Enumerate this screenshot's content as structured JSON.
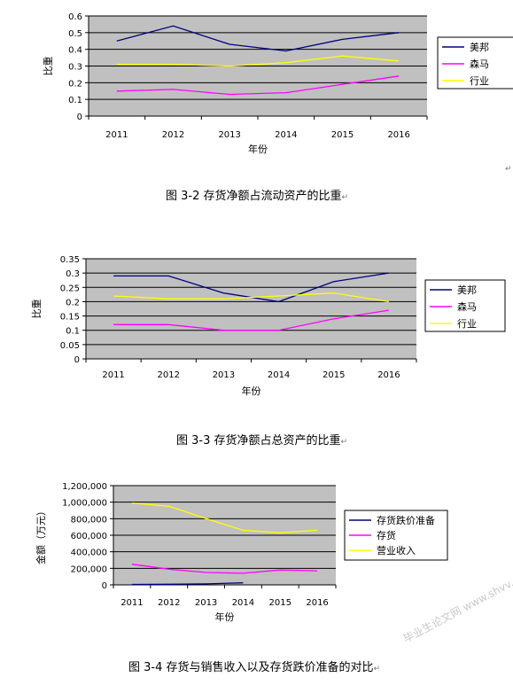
{
  "chart_data": [
    {
      "type": "line",
      "categories": [
        "2011",
        "2012",
        "2013",
        "2014",
        "2015",
        "2016"
      ],
      "ylabel": "比重",
      "xlabel": "年份",
      "ylim": [
        0,
        0.6
      ],
      "yticks": [
        0,
        0.1,
        0.2,
        0.3,
        0.4,
        0.5,
        0.6
      ],
      "ytick_labels": [
        "0",
        "0.1",
        "0.2",
        "0.3",
        "0.4",
        "0.5",
        "0.6"
      ],
      "grid": true,
      "legend": "right",
      "series": [
        {
          "name": "美邦",
          "color": "#000080",
          "values": [
            0.45,
            0.54,
            0.43,
            0.39,
            0.46,
            0.5
          ]
        },
        {
          "name": "森马",
          "color": "#ff00ff",
          "values": [
            0.15,
            0.16,
            0.13,
            0.14,
            0.19,
            0.24
          ]
        },
        {
          "name": "行业",
          "color": "#ffff00",
          "values": [
            0.31,
            0.31,
            0.3,
            0.32,
            0.36,
            0.33
          ]
        }
      ]
    },
    {
      "type": "line",
      "categories": [
        "2011",
        "2012",
        "2013",
        "2014",
        "2015",
        "2016"
      ],
      "ylabel": "比重",
      "xlabel": "年份",
      "ylim": [
        0,
        0.35
      ],
      "yticks": [
        0,
        0.05,
        0.1,
        0.15,
        0.2,
        0.25,
        0.3,
        0.35
      ],
      "ytick_labels": [
        "0",
        "0.05",
        "0.1",
        "0.15",
        "0.2",
        "0.25",
        "0.3",
        "0.35"
      ],
      "grid": true,
      "legend": "right",
      "series": [
        {
          "name": "美邦",
          "color": "#000080",
          "values": [
            0.29,
            0.29,
            0.23,
            0.2,
            0.27,
            0.3
          ]
        },
        {
          "name": "森马",
          "color": "#ff00ff",
          "values": [
            0.12,
            0.12,
            0.1,
            0.1,
            0.14,
            0.17
          ]
        },
        {
          "name": "行业",
          "color": "#ffff00",
          "values": [
            0.22,
            0.21,
            0.21,
            0.22,
            0.23,
            0.2
          ]
        }
      ]
    },
    {
      "type": "line",
      "categories": [
        "2011",
        "2012",
        "2013",
        "2014",
        "2015",
        "2016"
      ],
      "ylabel": "金额（万元）",
      "xlabel": "年份",
      "ylim": [
        0,
        1200000
      ],
      "yticks": [
        0,
        200000,
        400000,
        600000,
        800000,
        1000000,
        1200000
      ],
      "ytick_labels": [
        "0",
        "200,000",
        "400,000",
        "600,000",
        "800,000",
        "1,000,000",
        "1,200,000"
      ],
      "grid": true,
      "legend": "right",
      "series": [
        {
          "name": "存货跌价准备",
          "color": "#000080",
          "values": [
            5000,
            8000,
            12000,
            25000,
            null,
            null
          ]
        },
        {
          "name": "存货",
          "color": "#ff00ff",
          "values": [
            250000,
            190000,
            150000,
            140000,
            180000,
            170000
          ]
        },
        {
          "name": "营业收入",
          "color": "#ffff00",
          "values": [
            990000,
            950000,
            800000,
            660000,
            630000,
            660000
          ]
        }
      ]
    }
  ],
  "captions": [
    "图 3-2  存货净额占流动资产的比重",
    "图 3-3  存货净额占总资产的比重",
    "图 3-4 存货与销售收入以及存货跌价准备的对比"
  ],
  "paragraph_mark": "↵",
  "watermark": "毕业生论文网 www.shvv.com"
}
